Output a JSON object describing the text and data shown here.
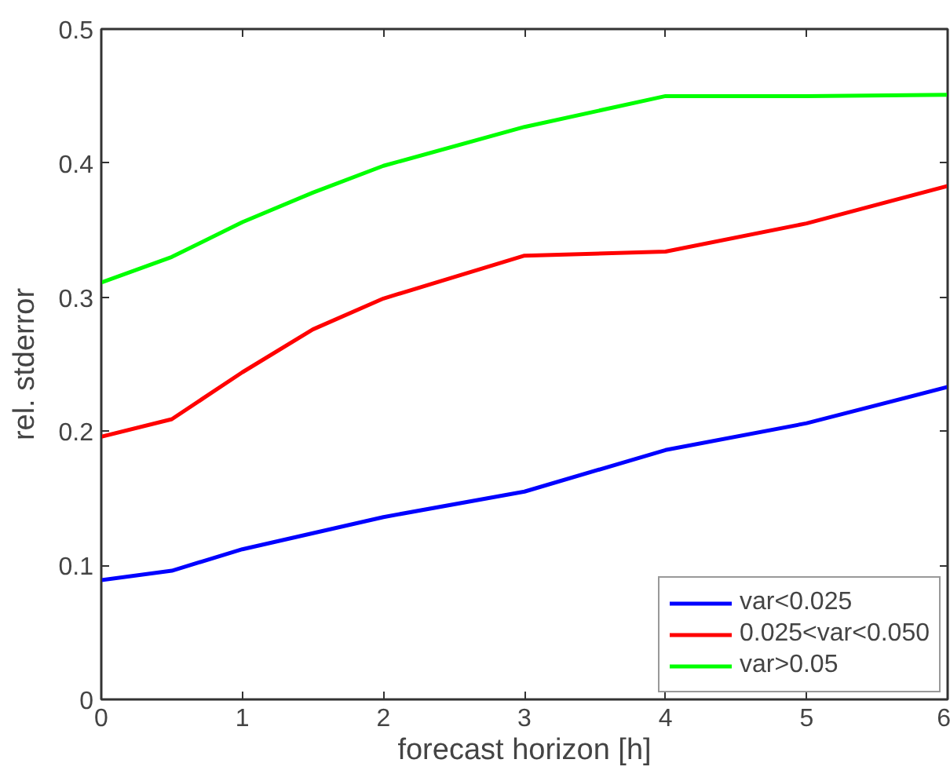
{
  "chart_data": {
    "type": "line",
    "xlabel": "forecast horizon [h]",
    "ylabel": "rel. stderror",
    "x": [
      0,
      0.5,
      1,
      1.5,
      2,
      3,
      4,
      5,
      6
    ],
    "series": [
      {
        "name": "var<0.025",
        "color": "#0000ff",
        "values": [
          0.089,
          0.096,
          0.112,
          0.124,
          0.136,
          0.155,
          0.186,
          0.206,
          0.233
        ]
      },
      {
        "name": "0.025<var<0.050",
        "color": "#ff0000",
        "values": [
          0.196,
          0.209,
          0.244,
          0.276,
          0.299,
          0.331,
          0.334,
          0.355,
          0.383
        ]
      },
      {
        "name": "var>0.05",
        "color": "#00ff00",
        "values": [
          0.311,
          0.33,
          0.356,
          0.378,
          0.398,
          0.427,
          0.45,
          0.45,
          0.451
        ]
      }
    ],
    "xlim": [
      0,
      6
    ],
    "ylim": [
      0,
      0.5
    ],
    "xticks": [
      0,
      1,
      2,
      3,
      4,
      5,
      6
    ],
    "yticks": [
      0,
      0.1,
      0.2,
      0.3,
      0.4,
      0.5
    ],
    "grid": false,
    "legend": "bottom right",
    "line_style": "solid",
    "marker": "none"
  }
}
